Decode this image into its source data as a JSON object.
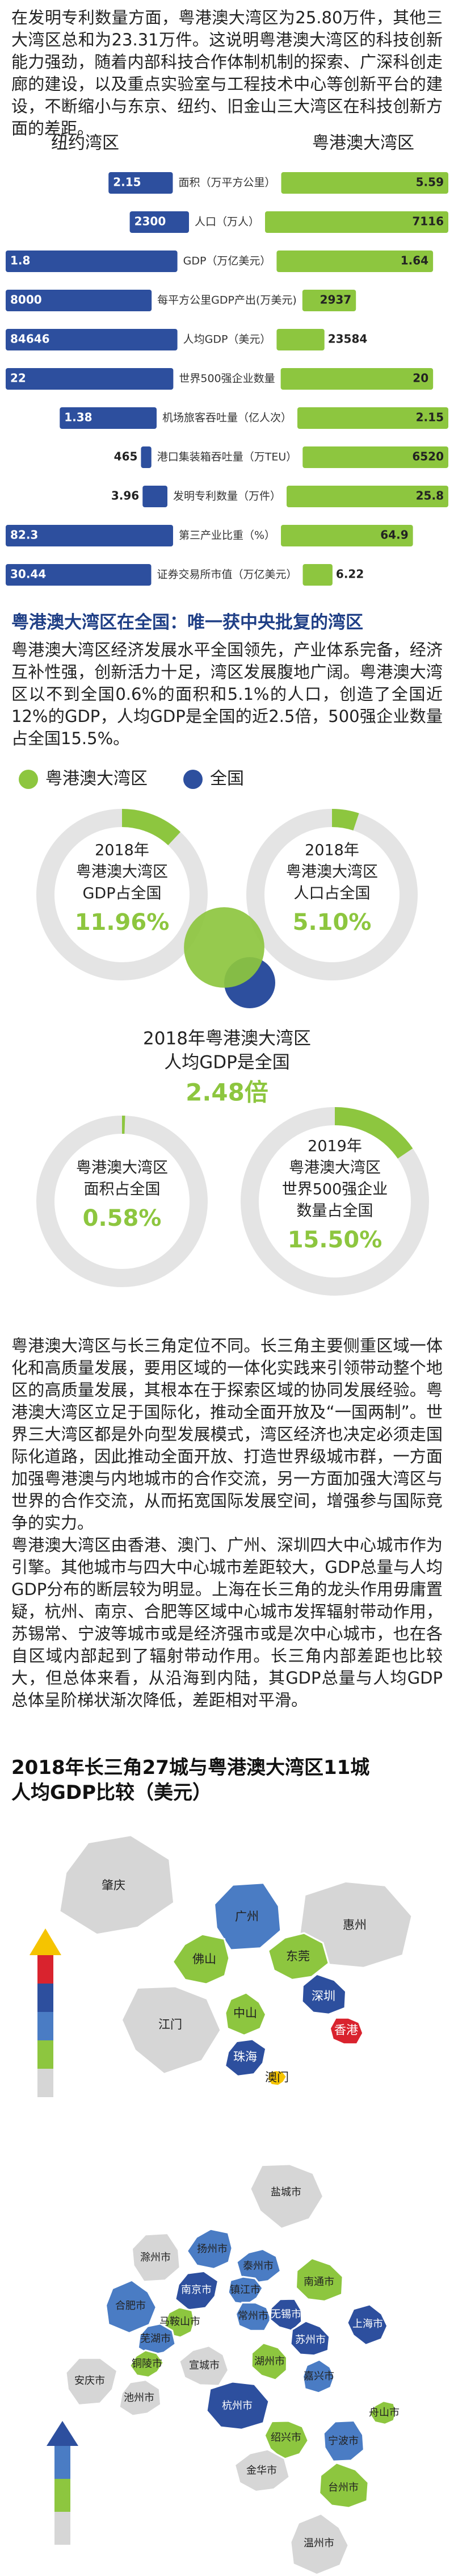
{
  "intro": "在发明专利数量方面，粤港澳大湾区为25.80万件，其他三大湾区总和为23.31万件。这说明粤港澳大湾区的科技创新能力强劲，随着内部科技合作体制机制的探索、广深科创走廊的建设，以及重点实验室与工程技术中心等创新平台的建设，不断缩小与东京、纽约、旧金山三大湾区在科技创新方面的差距。",
  "national": {
    "heading": "粤港澳大湾区在全国：唯一获中央批复的湾区",
    "text": "粤港澳大湾区经济发展水平全国领先，产业体系完备，经济互补性强，创新活力十足，湾区发展腹地广阔。粤港澳大湾区以不到全国0.6%的面积和5.1%的人口，创造了全国近12%的GDP，人均GDP是全国的近2.5倍，500强企业数量占全国15.5%。",
    "legend": [
      {
        "name": "粤港澳大湾区",
        "color": "#8dc63f"
      },
      {
        "name": "全国",
        "color": "#2d4f9e"
      }
    ]
  },
  "chart_data": [
    {
      "type": "butterfly",
      "categories": [
        "面积（万平方公里）",
        "人口（万人）",
        "GDP（万亿美元）",
        "每平方公里GDP产出(万美元)",
        "人均GDP（美元）",
        "世界500强企业数量",
        "机场旅客吞吐量（亿人次）",
        "港口集装箱吞吐量（万TEU）",
        "发明专利数量（万件）",
        "第三产业比重（%）",
        "证券交易所市值（万亿美元）"
      ],
      "series": [
        {
          "name": "纽约湾区",
          "color": "#2d4f9e",
          "values": [
            2.15,
            2300,
            1.8,
            8000,
            84646,
            22,
            1.38,
            465,
            3.96,
            82.3,
            30.44
          ]
        },
        {
          "name": "粤港澳大湾区",
          "color": "#8dc63f",
          "values": [
            5.59,
            7116,
            1.64,
            2937,
            23584,
            20,
            2.15,
            6520,
            25.8,
            64.9,
            6.22
          ]
        }
      ]
    },
    {
      "type": "ring",
      "title": [
        "2018年",
        "粤港澳大湾区",
        "GDP占全国"
      ],
      "values": [
        11.96
      ],
      "value_labels": [
        "11.96%"
      ],
      "color": "#8dc63f"
    },
    {
      "type": "ring",
      "title": [
        "2018年",
        "粤港澳大湾区",
        "人口占全国"
      ],
      "values": [
        5.1
      ],
      "value_labels": [
        "5.10%"
      ],
      "color": "#8dc63f"
    },
    {
      "type": "ratio",
      "title": [
        "2018年粤港澳大湾区",
        "人均GDP是全国"
      ],
      "values": [
        2.48
      ],
      "value_labels": [
        "2.48倍"
      ]
    },
    {
      "type": "ring",
      "title": [
        "粤港澳大湾区",
        "面积占全国"
      ],
      "values": [
        0.58
      ],
      "value_labels": [
        "0.58%"
      ],
      "color": "#8dc63f"
    },
    {
      "type": "ring",
      "title": [
        "2019年",
        "粤港澳大湾区",
        "世界500强企业",
        "数量占全国"
      ],
      "values": [
        15.5
      ],
      "value_labels": [
        "15.50%"
      ],
      "color": "#8dc63f"
    }
  ],
  "comparison": {
    "paragraphs": [
      "粤港澳大湾区与长三角定位不同。长三角主要侧重区域一体化和高质量发展，要用区域的一体化实践来引领带动整个地区的高质量发展，其根本在于探索区域的协同发展经验。粤港澳大湾区立足于国际化，推动全面开放及“一国两制”。世界三大湾区都是外向型发展模式，湾区经济也决定必须走国际化道路，因此推动全面开放、打造世界级城市群，一方面加强粤港澳与内地城市的合作交流，另一方面加强大湾区与世界的合作交流，从而拓宽国际发展空间，增强参与国际竞争的实力。",
      "粤港澳大湾区由香港、澳门、广州、深圳四大中心城市作为引擎。其他城市与四大中心城市差距较大，GDP总量与人均GDP分布的断层较为明显。上海在长三角的龙头作用毋庸置疑，杭州、南京、合肥等区域中心城市发挥辐射带动作用，苏锡常、宁波等城市或是经济强市或是次中心城市，也在各自区域内部起到了辐射带动作用。长三角内部差距也比较大，但总体来看，从沿海到内陆，其GDP总量与人均GDP总体呈阶梯状渐次降低，差距相对平滑。"
    ],
    "heading": [
      "2018年长三角27城与粤港澳大湾区11城",
      "人均GDP比较（美元）"
    ]
  },
  "maps": {
    "gba_cities": [
      "肇庆",
      "惠州",
      "江门",
      "广州",
      "佛山",
      "东莞",
      "深圳",
      "中山",
      "珠海",
      "澳门",
      "香港"
    ],
    "yrd_cities": [
      "盐城市",
      "滁州市",
      "扬州市",
      "泰州市",
      "南通市",
      "合肥市",
      "南京市",
      "镇江市",
      "常州市",
      "无锡市",
      "马鞍山市",
      "芜湖市",
      "苏州市",
      "上海市",
      "安庆市",
      "铜陵市",
      "宣城市",
      "湖州市",
      "嘉兴市",
      "池州市",
      "杭州市",
      "绍兴市",
      "宁波市",
      "舟山市",
      "金华市",
      "台州市",
      "温州市"
    ]
  }
}
